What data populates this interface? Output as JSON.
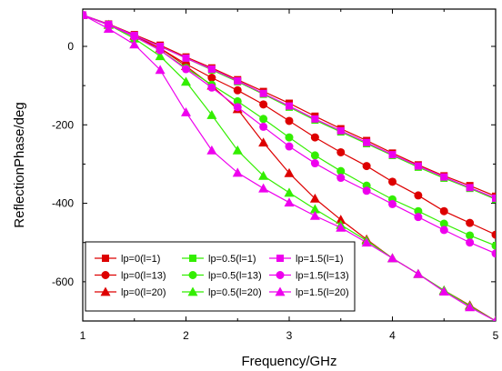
{
  "chart_data": {
    "type": "line",
    "title": "",
    "xlabel": "Frequency/GHz",
    "ylabel": "ReflectionPhase/deg",
    "xlim": [
      1,
      5
    ],
    "ylim": [
      -700,
      95
    ],
    "x_ticks": [
      1,
      2,
      3,
      4,
      5
    ],
    "x_tick_labels": [
      "1",
      "2",
      "3",
      "4",
      "5"
    ],
    "y_ticks": [
      0,
      -200,
      -400,
      -600
    ],
    "y_tick_labels": [
      "0",
      "-200",
      "-400",
      "-600"
    ],
    "grid": false,
    "legend_position": "bottom-left",
    "x": [
      1.0,
      1.25,
      1.5,
      1.75,
      2.0,
      2.25,
      2.5,
      2.75,
      3.0,
      3.25,
      3.5,
      3.75,
      4.0,
      4.25,
      4.5,
      4.75,
      5.0
    ],
    "series": [
      {
        "name": "lp=0(l=1)",
        "color": "#dd0000",
        "marker": "square",
        "values": [
          80,
          57,
          30,
          3,
          -27,
          -55,
          -85,
          -115,
          -145,
          -178,
          -210,
          -240,
          -272,
          -302,
          -330,
          -355,
          -382
        ]
      },
      {
        "name": "lp=0(l=13)",
        "color": "#dd0000",
        "marker": "circle",
        "values": [
          80,
          55,
          25,
          -5,
          -45,
          -80,
          -112,
          -148,
          -190,
          -232,
          -270,
          -305,
          -345,
          -380,
          -420,
          -450,
          -480
        ]
      },
      {
        "name": "lp=0(l=20)",
        "color": "#dd0000",
        "marker": "triangle",
        "values": [
          80,
          55,
          27,
          -5,
          -50,
          -100,
          -160,
          -245,
          -323,
          -388,
          -442,
          -492,
          -540,
          -580,
          -622,
          -660,
          -700
        ]
      },
      {
        "name": "lp=0.5(l=1)",
        "color": "#33ee00",
        "marker": "square",
        "values": [
          80,
          56,
          28,
          0,
          -30,
          -60,
          -90,
          -122,
          -155,
          -188,
          -218,
          -248,
          -278,
          -308,
          -336,
          -362,
          -390
        ]
      },
      {
        "name": "lp=0.5(l=13)",
        "color": "#33ee00",
        "marker": "circle",
        "values": [
          80,
          55,
          25,
          -10,
          -55,
          -98,
          -140,
          -185,
          -232,
          -278,
          -318,
          -355,
          -390,
          -420,
          -452,
          -482,
          -508
        ]
      },
      {
        "name": "lp=0.5(l=20)",
        "color": "#33ee00",
        "marker": "triangle",
        "values": [
          80,
          55,
          20,
          -25,
          -90,
          -175,
          -265,
          -330,
          -373,
          -415,
          -455,
          -495,
          -540,
          -580,
          -622,
          -662,
          -700
        ]
      },
      {
        "name": "lp=1.5(l=1)",
        "color": "#ee00ee",
        "marker": "square",
        "values": [
          80,
          56,
          28,
          0,
          -30,
          -58,
          -88,
          -120,
          -152,
          -185,
          -215,
          -245,
          -276,
          -305,
          -333,
          -360,
          -387
        ]
      },
      {
        "name": "lp=1.5(l=13)",
        "color": "#ee00ee",
        "marker": "circle",
        "values": [
          80,
          55,
          25,
          -10,
          -58,
          -105,
          -155,
          -205,
          -255,
          -298,
          -335,
          -368,
          -402,
          -435,
          -468,
          -500,
          -528
        ]
      },
      {
        "name": "lp=1.5(l=20)",
        "color": "#ee00ee",
        "marker": "triangle",
        "values": [
          80,
          45,
          5,
          -60,
          -168,
          -265,
          -322,
          -362,
          -398,
          -432,
          -462,
          -500,
          -540,
          -580,
          -625,
          -665,
          -700
        ]
      }
    ]
  }
}
